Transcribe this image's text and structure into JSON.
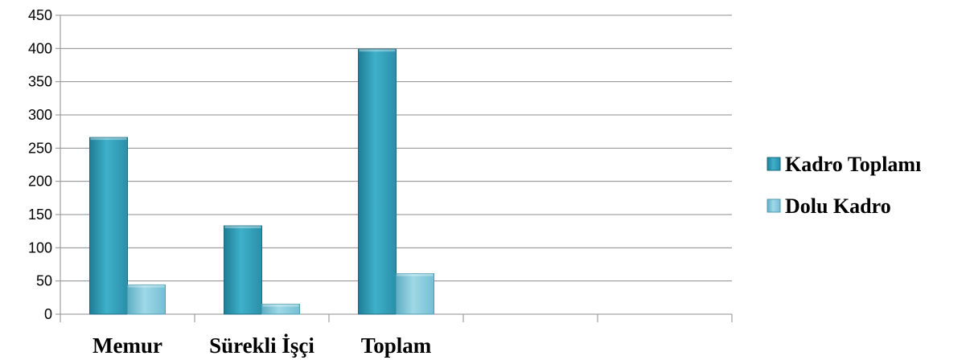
{
  "chart_data": {
    "type": "bar",
    "categories": [
      "Memur",
      "Sürekli İşçi",
      "Toplam",
      "",
      ""
    ],
    "series": [
      {
        "name": "Kadro Toplamı",
        "values": [
          266,
          133,
          399,
          null,
          null
        ],
        "color": "#3aa6bf"
      },
      {
        "name": "Dolu Kadro",
        "values": [
          44,
          15,
          61,
          null,
          null
        ],
        "color": "#8ecfe0"
      }
    ],
    "yticks": [
      "0",
      "50",
      "100",
      "150",
      "200",
      "250",
      "300",
      "350",
      "400",
      "450"
    ],
    "ylim": [
      0,
      450
    ],
    "grid": true,
    "legend_position": "right",
    "title": "",
    "xlabel": "",
    "ylabel": ""
  }
}
